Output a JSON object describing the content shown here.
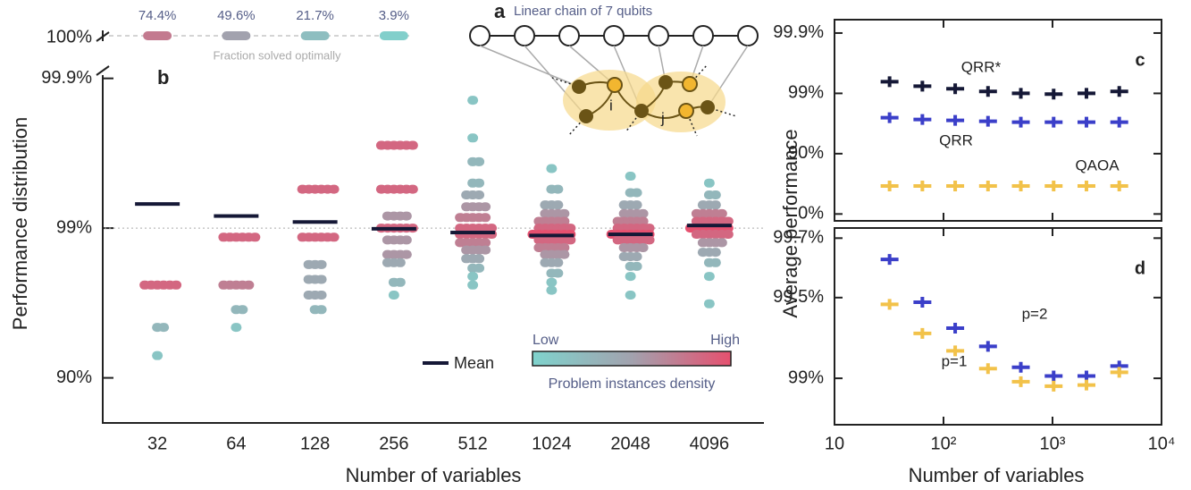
{
  "diagram": {
    "label": "a",
    "title": "Linear chain of 7 qubits",
    "node_labels": [
      "i",
      "j"
    ]
  },
  "chart_data": [
    {
      "type": "strip",
      "label": "b",
      "xlabel": "Number of variables",
      "ylabel": "Performance distribution",
      "categories": [
        "32",
        "64",
        "128",
        "256",
        "512",
        "1024",
        "2048",
        "4096"
      ],
      "yscale": "log-complement",
      "ylim": [
        80,
        99.91
      ],
      "yticks": [
        {
          "value": 90,
          "label": "90%"
        },
        {
          "value": 99,
          "label": "99%"
        },
        {
          "value": 99.9,
          "label": "99.9%"
        }
      ],
      "reference_line": 99,
      "distributions": [
        [
          97.6,
          97.6,
          97.6,
          97.6,
          97.6,
          97.6,
          95.4,
          95.4,
          92.9
        ],
        [
          98.85,
          98.85,
          98.85,
          98.85,
          98.85,
          98.85,
          97.6,
          97.6,
          97.6,
          97.6,
          97.6,
          96.5,
          96.5,
          95.4
        ],
        [
          99.45,
          99.45,
          99.45,
          99.45,
          99.45,
          99.45,
          98.85,
          98.85,
          98.85,
          98.85,
          98.85,
          98.85,
          98.25,
          98.25,
          98.25,
          97.8,
          97.8,
          97.8,
          97.2,
          97.2,
          97.2,
          96.5,
          96.5
        ],
        [
          99.72,
          99.72,
          99.72,
          99.72,
          99.72,
          99.72,
          99.45,
          99.45,
          99.45,
          99.45,
          99.45,
          99.45,
          99.17,
          99.17,
          99.17,
          99.17,
          99.0,
          99.0,
          99.0,
          99.0,
          99.0,
          99.0,
          98.8,
          98.8,
          98.8,
          98.8,
          98.5,
          98.5,
          98.5,
          98.5,
          98.3,
          98.3,
          98.3,
          97.7,
          97.7,
          97.2
        ],
        [
          99.86,
          99.75,
          99.64,
          99.64,
          99.5,
          99.5,
          99.4,
          99.4,
          99.4,
          99.28,
          99.28,
          99.28,
          99.28,
          99.15,
          99.15,
          99.15,
          99.15,
          99.15,
          99.0,
          99.0,
          99.0,
          99.0,
          99.0,
          99.0,
          98.9,
          98.9,
          98.9,
          98.9,
          98.9,
          98.9,
          98.75,
          98.75,
          98.75,
          98.75,
          98.75,
          98.6,
          98.6,
          98.6,
          98.6,
          98.4,
          98.4,
          98.4,
          98.15,
          98.15,
          97.9,
          97.6
        ],
        [
          99.6,
          99.45,
          99.45,
          99.3,
          99.3,
          99.3,
          99.2,
          99.2,
          99.2,
          99.2,
          99.1,
          99.1,
          99.1,
          99.1,
          99.1,
          99.0,
          99.0,
          99.0,
          99.0,
          99.0,
          99.0,
          98.9,
          98.9,
          98.9,
          98.9,
          98.9,
          98.9,
          98.9,
          98.8,
          98.8,
          98.8,
          98.8,
          98.8,
          98.8,
          98.65,
          98.65,
          98.65,
          98.65,
          98.65,
          98.5,
          98.5,
          98.5,
          98.5,
          98.3,
          98.3,
          98.3,
          98.0,
          98.0,
          97.7,
          97.4
        ],
        [
          99.55,
          99.42,
          99.42,
          99.3,
          99.3,
          99.3,
          99.2,
          99.2,
          99.2,
          99.2,
          99.1,
          99.1,
          99.1,
          99.1,
          99.1,
          99.0,
          99.0,
          99.0,
          99.0,
          99.0,
          99.0,
          98.9,
          98.9,
          98.9,
          98.9,
          98.9,
          98.9,
          98.9,
          98.8,
          98.8,
          98.8,
          98.8,
          98.8,
          98.8,
          98.65,
          98.65,
          98.65,
          98.65,
          98.45,
          98.45,
          98.45,
          98.2,
          98.2,
          97.9,
          97.2
        ],
        [
          99.5,
          99.4,
          99.4,
          99.3,
          99.3,
          99.3,
          99.2,
          99.2,
          99.2,
          99.2,
          99.2,
          99.1,
          99.1,
          99.1,
          99.1,
          99.1,
          99.1,
          99.0,
          99.0,
          99.0,
          99.0,
          99.0,
          99.0,
          99.0,
          98.9,
          98.9,
          98.9,
          98.9,
          98.9,
          98.9,
          98.75,
          98.75,
          98.75,
          98.75,
          98.55,
          98.55,
          98.55,
          98.3,
          98.3,
          97.9,
          96.8
        ]
      ],
      "means": [
        99.31,
        99.17,
        99.09,
        98.99,
        98.93,
        98.88,
        98.9,
        99.04
      ],
      "mean_label": "Mean",
      "mean_color": "#151836",
      "colormap": [
        "#7fd3cd",
        "#a2a2ae",
        "#e6506f"
      ],
      "colorbar": {
        "low": "Low",
        "high": "High",
        "title": "Problem instances density"
      },
      "optimal": {
        "label": "100%",
        "caption": "Fraction solved optimally",
        "values": [
          74.4,
          49.6,
          21.7,
          3.9
        ],
        "value_labels": [
          "74.4%",
          "49.6%",
          "21.7%",
          "3.9%"
        ]
      }
    },
    {
      "type": "scatter",
      "label": "c",
      "ylabel": "Average performance",
      "x": [
        32,
        64,
        128,
        256,
        512,
        1024,
        2048,
        4096
      ],
      "xscale": "log",
      "xlim": [
        10,
        10000
      ],
      "xticks": [
        10,
        100,
        1000,
        10000
      ],
      "yscale": "log-complement",
      "ylim": [
        -30,
        99.94
      ],
      "yticks": [
        {
          "value": 0,
          "label": "0%"
        },
        {
          "value": 90,
          "label": "90%"
        },
        {
          "value": 99,
          "label": "99%"
        },
        {
          "value": 99.9,
          "label": "99.9%"
        }
      ],
      "series": [
        {
          "name": "QRR*",
          "color": "#151836",
          "values": [
            99.36,
            99.24,
            99.16,
            99.07,
            99.0,
            98.97,
            99.0,
            99.07
          ]
        },
        {
          "name": "QRR",
          "color": "#3b3fc9",
          "values": [
            97.47,
            97.29,
            97.2,
            97.1,
            97.0,
            97.0,
            97.0,
            97.0
          ]
        },
        {
          "name": "QAOA",
          "color": "#f2c24a",
          "values": [
            65.6,
            65.6,
            65.6,
            65.6,
            65.6,
            65.6,
            65.6,
            65.6
          ]
        }
      ]
    },
    {
      "type": "scatter",
      "label": "d",
      "xlabel": "Number of variables",
      "x": [
        32,
        64,
        128,
        256,
        512,
        1024,
        2048,
        4096
      ],
      "xscale": "log",
      "xlim": [
        10,
        10000
      ],
      "xticks": [
        10,
        {
          "value": 100,
          "label": "10²"
        },
        {
          "value": 1000,
          "label": "10³"
        },
        {
          "value": 10000,
          "label": "10⁴"
        }
      ],
      "yscale": "log-complement",
      "ylim": [
        98.51,
        99.725
      ],
      "yticks": [
        {
          "value": 99,
          "label": "99%"
        },
        {
          "value": 99.5,
          "label": "99.5%"
        },
        {
          "value": 99.7,
          "label": "99.7%"
        }
      ],
      "series": [
        {
          "name": "p=2",
          "color": "#3b3fc9",
          "values": [
            99.64,
            99.48,
            99.35,
            99.24,
            99.09,
            99.02,
            99.02,
            99.1
          ]
        },
        {
          "name": "p=1",
          "color": "#f2c24a",
          "values": [
            99.47,
            99.32,
            99.21,
            99.08,
            98.97,
            98.93,
            98.94,
            99.05
          ]
        }
      ]
    }
  ]
}
